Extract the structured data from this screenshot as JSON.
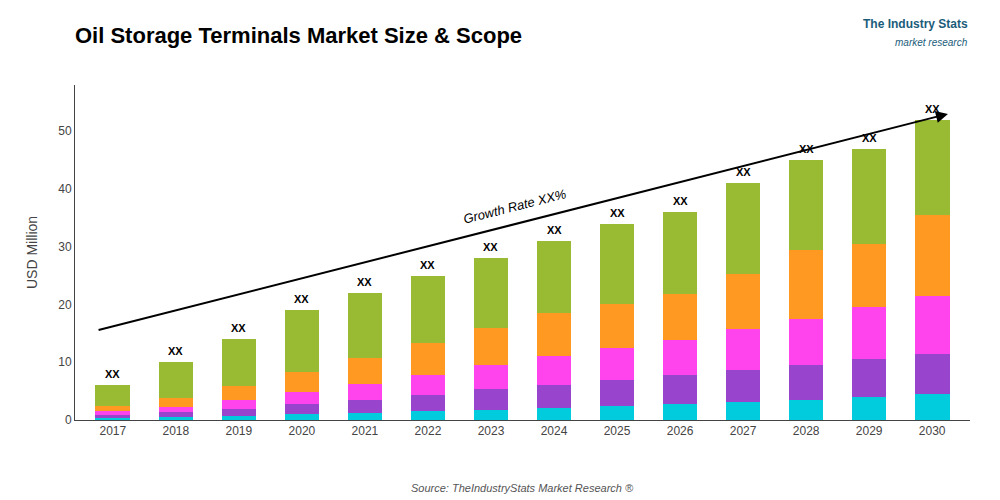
{
  "chart_data": {
    "type": "bar",
    "stacked": true,
    "title": "Oil Storage Terminals Market Size & Scope",
    "ylabel": "USD Million",
    "categories": [
      "2017",
      "2018",
      "2019",
      "2020",
      "2021",
      "2022",
      "2023",
      "2024",
      "2025",
      "2026",
      "2027",
      "2028",
      "2029",
      "2030"
    ],
    "series": [
      {
        "color": "#00CCDD",
        "values": [
          0.3,
          0.5,
          0.7,
          1.0,
          1.2,
          1.5,
          1.8,
          2.0,
          2.5,
          2.8,
          3.2,
          3.5,
          4.0,
          4.5
        ]
      },
      {
        "color": "#9944CC",
        "values": [
          0.5,
          0.8,
          1.2,
          1.8,
          2.2,
          2.8,
          3.5,
          4.0,
          4.5,
          5.0,
          5.5,
          6.0,
          6.5,
          7.0
        ]
      },
      {
        "color": "#FF44EE",
        "values": [
          0.7,
          1.0,
          1.5,
          2.0,
          2.8,
          3.5,
          4.2,
          5.0,
          5.5,
          6.0,
          7.0,
          8.0,
          9.0,
          10.0
        ]
      },
      {
        "color": "#FF9922",
        "values": [
          1.0,
          1.5,
          2.5,
          3.5,
          4.5,
          5.5,
          6.5,
          7.5,
          7.5,
          8.0,
          9.5,
          12.0,
          11.0,
          14.0
        ]
      },
      {
        "color": "#99BB33",
        "values": [
          3.5,
          6.2,
          8.1,
          10.7,
          11.3,
          11.7,
          12.0,
          12.5,
          14.0,
          14.2,
          15.8,
          15.5,
          16.5,
          16.5
        ]
      }
    ],
    "ylim": [
      0,
      58
    ],
    "yticks": [
      0,
      10,
      20,
      30,
      40,
      50
    ],
    "grid": false,
    "annotations": [
      {
        "text": "XX",
        "category": "2017"
      },
      {
        "text": "XX",
        "category": "2018"
      },
      {
        "text": "XX",
        "category": "2019"
      },
      {
        "text": "XX",
        "category": "2020"
      },
      {
        "text": "XX",
        "category": "2021"
      },
      {
        "text": "XX",
        "category": "2022"
      },
      {
        "text": "XX",
        "category": "2023"
      },
      {
        "text": "XX",
        "category": "2024"
      },
      {
        "text": "XX",
        "category": "2025"
      },
      {
        "text": "XX",
        "category": "2026"
      },
      {
        "text": "XX",
        "category": "2027"
      },
      {
        "text": "XX",
        "category": "2028"
      },
      {
        "text": "XX",
        "category": "2029"
      },
      {
        "text": "XX",
        "category": "2030"
      },
      {
        "text": "Growth Rate XX%",
        "arrow": {
          "from": {
            "category": "2017",
            "y": 15.5
          },
          "to": {
            "category": "2030",
            "y": 53
          }
        }
      }
    ],
    "source": "Source: TheIndustryStats Market Research ®",
    "logo": [
      "The Industry Stats",
      "market research"
    ]
  }
}
